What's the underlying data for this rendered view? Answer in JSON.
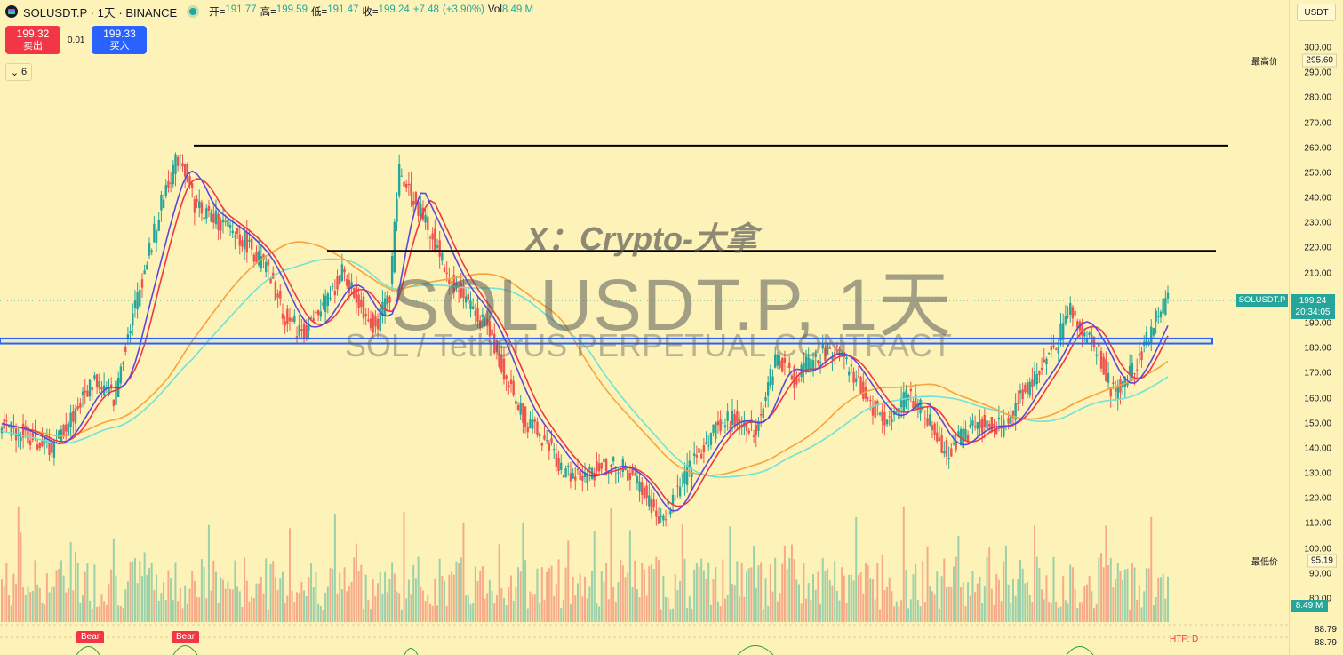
{
  "header": {
    "symbol": "SOLUSDT.P",
    "interval": "1天",
    "exchange": "BINANCE",
    "open_label": "开=",
    "open": "191.77",
    "high_label": "高=",
    "high": "199.59",
    "low_label": "低=",
    "low": "191.47",
    "close_label": "收=",
    "close": "199.24",
    "change": "+7.48",
    "change_pct": "(+3.90%)",
    "vol_label": "Vol",
    "vol": "8.49 M"
  },
  "trade": {
    "sell_price": "199.32",
    "sell_label": "卖出",
    "spread": "0.01",
    "buy_price": "199.33",
    "buy_label": "买入"
  },
  "indicators_toggle": {
    "count": "6"
  },
  "currency": "USDT",
  "price_axis": {
    "ticks": [
      "300.00",
      "290.00",
      "280.00",
      "270.00",
      "260.00",
      "250.00",
      "240.00",
      "230.00",
      "220.00",
      "210.00",
      "200.00",
      "190.00",
      "180.00",
      "170.00",
      "160.00",
      "150.00",
      "140.00",
      "130.00",
      "120.00",
      "110.00",
      "100.00",
      "90.00",
      "80.00"
    ],
    "high_label": "最高价",
    "high_value": "295.60",
    "low_label": "最低价",
    "low_value": "95.19",
    "current_symbol": "SOLUSDT.P",
    "current_price": "199.24",
    "countdown": "20:34:05",
    "volume_value": "8.49 M",
    "indicator_values": [
      "88.79",
      "88.79"
    ]
  },
  "watermark": {
    "main": "SOLUSDT.P, 1天",
    "sub": "SOL / TetherUS PERPETUAL CONTRACT",
    "overlay": "X：Crypto-大拿"
  },
  "signals": {
    "bear_label": "Bear",
    "htf_label": "HTF: D"
  },
  "colors": {
    "background": "#fdf3b8",
    "up": "#26a69a",
    "down": "#ef5350",
    "ma_fast": "#5b48d9",
    "ma_mid": "#f23645",
    "ma_slow": "#f7a33e",
    "ma_slower": "#6fe3d6",
    "support_zone": "#2962ff"
  },
  "chart_data": {
    "type": "candlestick",
    "axis": {
      "ylim": [
        80,
        300
      ]
    },
    "horizontal_levels": [
      261,
      219
    ],
    "support_zone": [
      182,
      184
    ],
    "max": 295.6,
    "min": 95.19,
    "last": 199.24
  }
}
